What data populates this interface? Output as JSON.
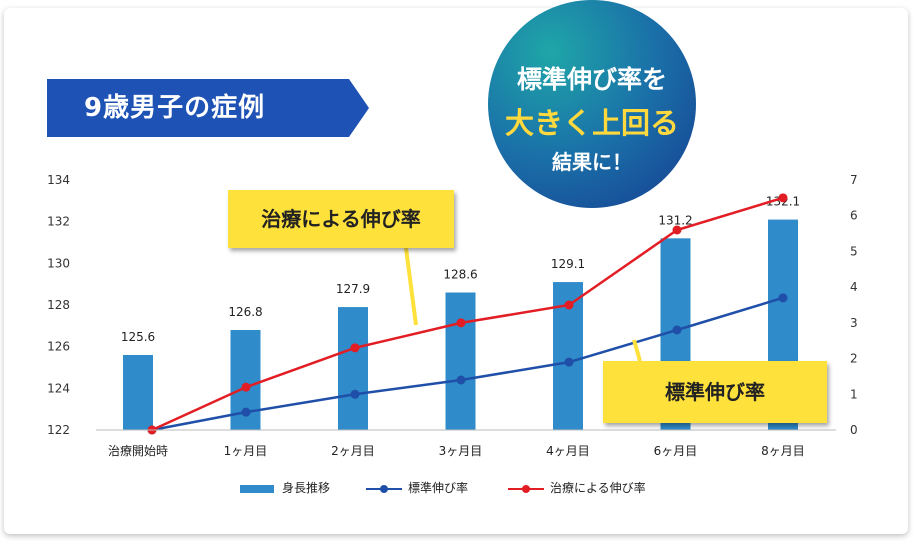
{
  "banner": {
    "title": "9歳男子の症例"
  },
  "badge": {
    "line1": "標準伸び率を",
    "line2": "大きく上回る",
    "line3": "結果に！"
  },
  "callouts": {
    "treatment": "治療による伸び率",
    "standard": "標準伸び率"
  },
  "colors": {
    "bar": "#2f8bc9",
    "standard": "#1f4fa8",
    "treatment": "#e21d24",
    "banner": "#1f52b5",
    "callout": "#ffe13c"
  },
  "chart_data": {
    "type": "bar+line",
    "categories": [
      "治療開始時",
      "1ヶ月目",
      "2ヶ月目",
      "3ヶ月目",
      "4ヶ月目",
      "6ヶ月目",
      "8ヶ月目"
    ],
    "series": [
      {
        "name": "身長推移",
        "type": "bar",
        "axis": "left",
        "values": [
          125.6,
          126.8,
          127.9,
          128.6,
          129.1,
          131.2,
          132.1
        ]
      },
      {
        "name": "標準伸び率",
        "type": "line",
        "axis": "right",
        "values": [
          0,
          0.5,
          1.0,
          1.4,
          1.9,
          2.8,
          3.7
        ]
      },
      {
        "name": "治療による伸び率",
        "type": "line",
        "axis": "right",
        "values": [
          0,
          1.2,
          2.3,
          3.0,
          3.5,
          5.6,
          6.5
        ]
      }
    ],
    "data_labels": [
      "125.6",
      "126.8",
      "127.9",
      "128.6",
      "129.1",
      "131.2",
      "132.1"
    ],
    "y_left": {
      "min": 122,
      "max": 134,
      "ticks": [
        "122",
        "124",
        "126",
        "128",
        "130",
        "132",
        "134"
      ]
    },
    "y_right": {
      "min": 0,
      "max": 7,
      "ticks": [
        "0",
        "1",
        "2",
        "3",
        "4",
        "5",
        "6",
        "7"
      ]
    },
    "legend": {
      "position": "bottom"
    },
    "grid": false
  }
}
